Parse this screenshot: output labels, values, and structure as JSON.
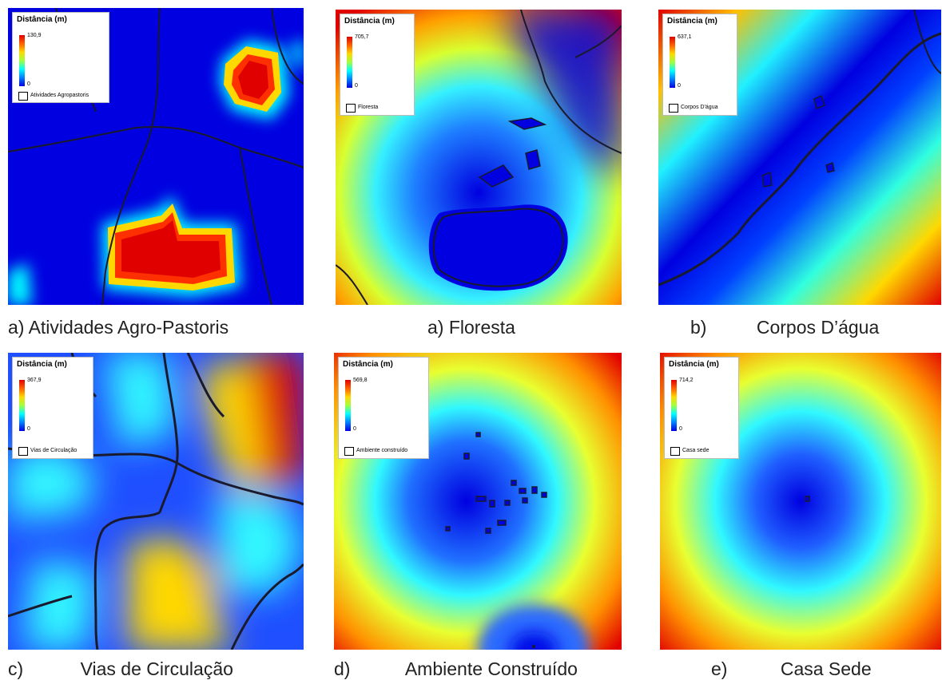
{
  "legend_title": "Distância (m)",
  "legend_min": "0",
  "colors": {
    "low": "#0000e0",
    "mid": "#00ffff",
    "high": "#e00000",
    "line": "#1a1a2e"
  },
  "panels": [
    {
      "id": "atividades",
      "max": "130,9",
      "layer": "Atividades Agropastoris",
      "caption_letter": "a)",
      "caption_text": "Atividades Agro-Pastoris"
    },
    {
      "id": "floresta",
      "max": "705,7",
      "layer": "Floresta",
      "caption_letter": "a)",
      "caption_text": "Floresta"
    },
    {
      "id": "corpos",
      "max": "637,1",
      "layer": "Corpos D'água",
      "caption_letter": "b)",
      "caption_text": "Corpos D’água"
    },
    {
      "id": "vias",
      "max": "367,9",
      "layer": "Vias de Circulação",
      "caption_letter": "c)",
      "caption_text": "Vias de Circulação"
    },
    {
      "id": "ambiente",
      "max": "569,8",
      "layer": "Ambiente construído",
      "caption_letter": "d)",
      "caption_text": "Ambiente Construído"
    },
    {
      "id": "casa",
      "max": "714,2",
      "layer": "Casa sede",
      "caption_letter": "e)",
      "caption_text": "Casa Sede"
    }
  ]
}
